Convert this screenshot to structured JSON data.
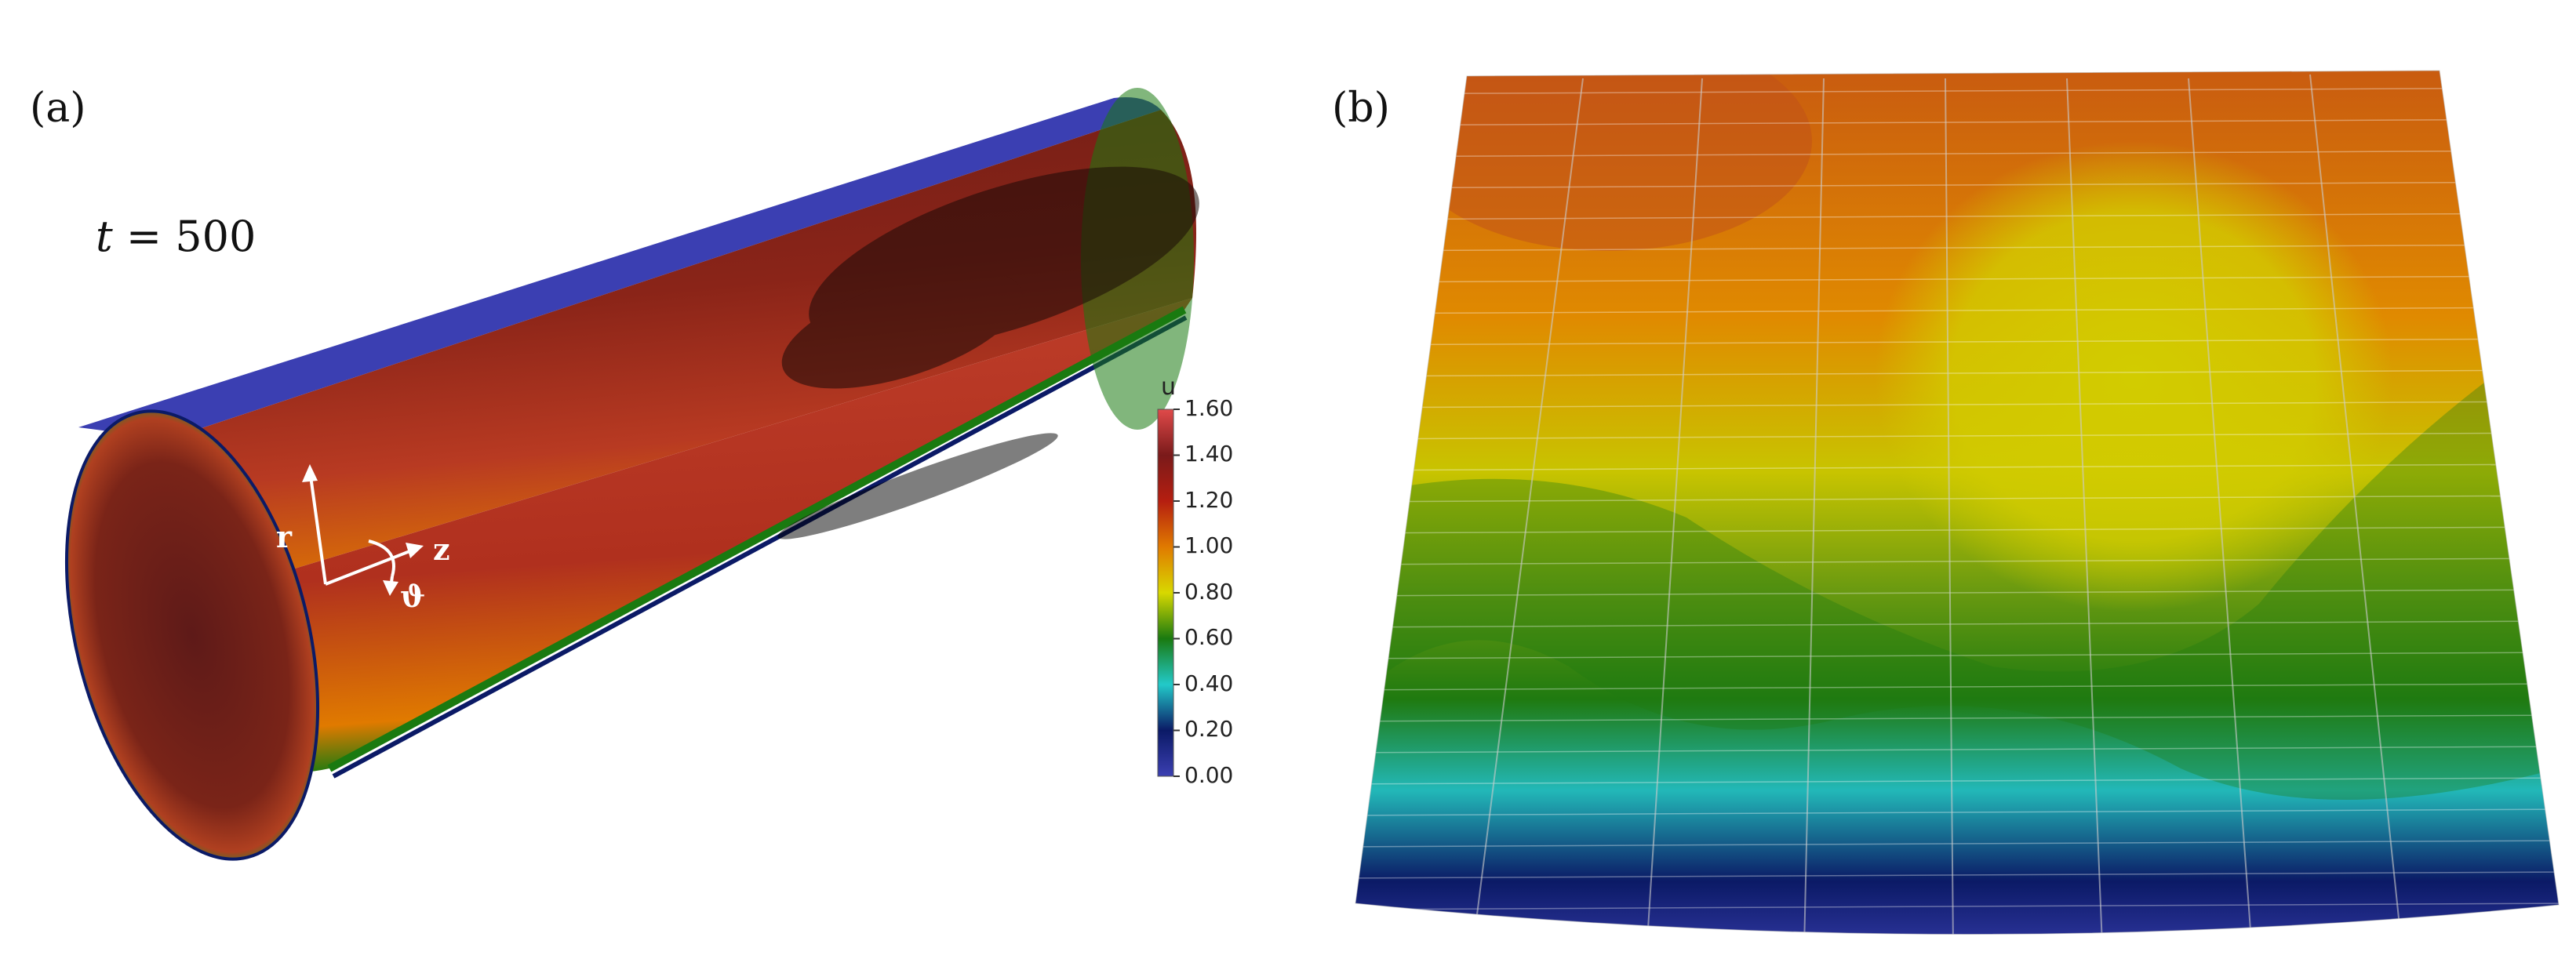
{
  "panels": {
    "a": {
      "label": "(a)",
      "time_symbol": "t",
      "time_equals": " = ",
      "time_value": "500",
      "axes": {
        "radial": "r",
        "axial": "z",
        "azimuthal": "ϑ"
      }
    },
    "b": {
      "label": "(b)"
    }
  },
  "colorbar": {
    "title": "u",
    "ticks": [
      "1.60",
      "1.40",
      "1.20",
      "1.00",
      "0.80",
      "0.60",
      "0.40",
      "0.20",
      "0.00"
    ],
    "colors": {
      "c0": "#3b3fb2",
      "c1": "#0b1a66",
      "c2": "#22c9c9",
      "c3": "#1a7a10",
      "c4": "#d8d800",
      "c5": "#e07a00",
      "c6": "#b51e10",
      "c7": "#7a1a1a",
      "c8": "#e04a4a"
    }
  }
}
